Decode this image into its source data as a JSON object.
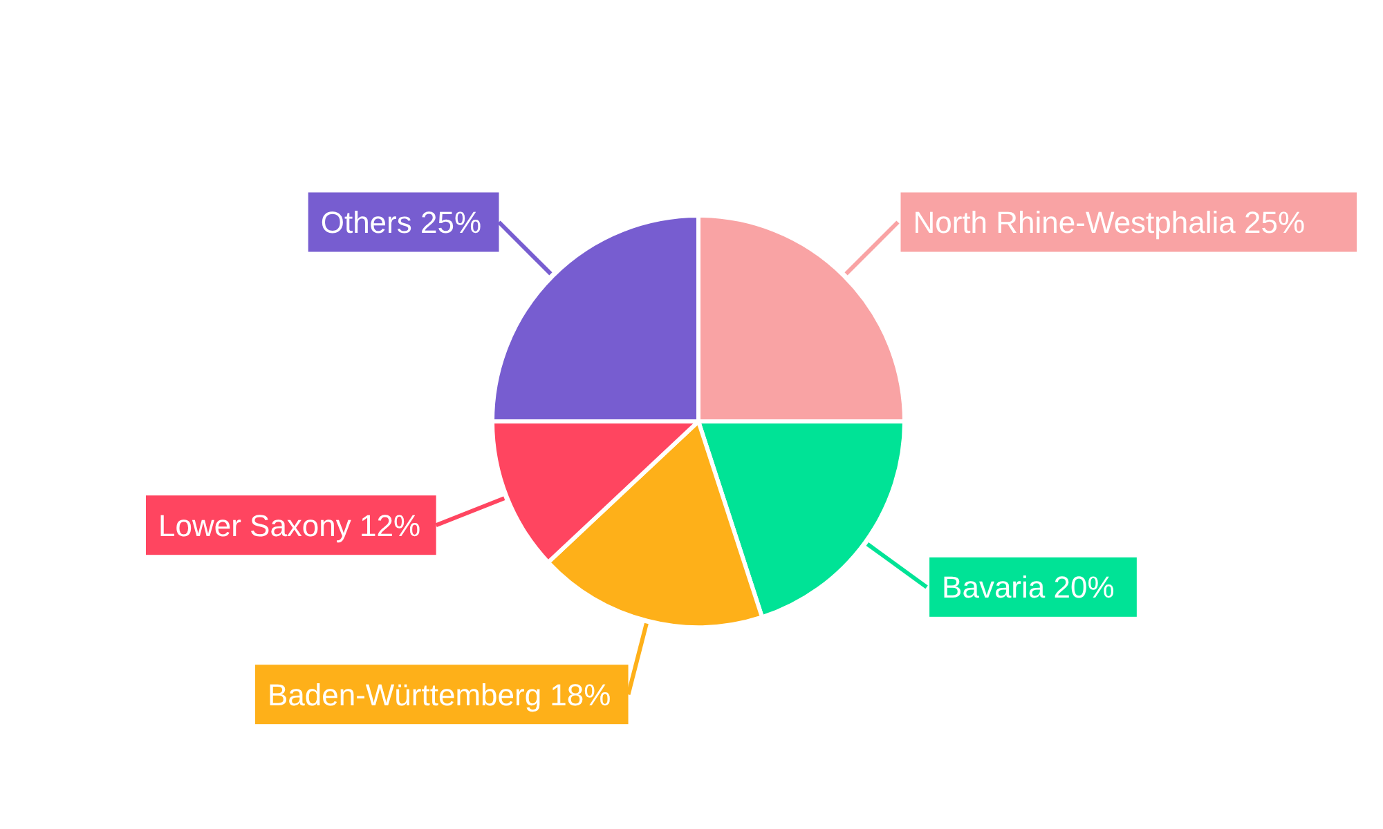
{
  "chart_data": {
    "type": "pie",
    "categories": [
      "North Rhine-Westphalia",
      "Bavaria",
      "Baden-Württemberg",
      "Lower Saxony",
      "Others"
    ],
    "values": [
      25,
      20,
      18,
      12,
      25
    ],
    "value_labels": [
      "25%",
      "20%",
      "18%",
      "12%",
      "25%"
    ],
    "colors": [
      "#f9a3a4",
      "#00e396",
      "#feb019",
      "#ff4560",
      "#775dd0"
    ],
    "legend": false
  }
}
